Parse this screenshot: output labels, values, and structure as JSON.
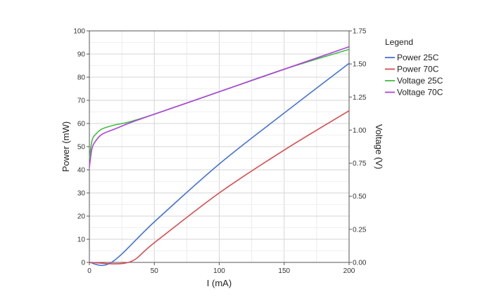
{
  "chart_data": {
    "type": "line",
    "xlabel": "I (mA)",
    "ylabel": "Power (mW)",
    "y2label": "Voltage (V)",
    "xlim": [
      0,
      200
    ],
    "ylim": [
      0,
      100
    ],
    "y2lim": [
      0,
      1.75
    ],
    "xticks": [
      "0",
      "50",
      "100",
      "150",
      "200"
    ],
    "yticks": [
      "0",
      "10",
      "20",
      "30",
      "40",
      "50",
      "60",
      "70",
      "80",
      "90",
      "100"
    ],
    "y2ticks": [
      "0.00",
      "0.25",
      "0.50",
      "0.75",
      "1.00",
      "1.25",
      "1.50",
      "1.75"
    ],
    "grid": true,
    "legend_title": "Legend",
    "legend_position": "right",
    "series": [
      {
        "name": "Power 25C",
        "axis": "left",
        "color": "#4472d9",
        "x": [
          0,
          17,
          50,
          100,
          150,
          200
        ],
        "y": [
          0,
          0,
          17.5,
          42.5,
          64.5,
          86
        ]
      },
      {
        "name": "Power 70C",
        "axis": "left",
        "color": "#d94b50",
        "x": [
          0,
          30,
          50,
          100,
          150,
          200
        ],
        "y": [
          0,
          0,
          8.5,
          30,
          48.5,
          65.5
        ]
      },
      {
        "name": "Voltage 25C",
        "axis": "right",
        "color": "#3fbf3f",
        "x": [
          0,
          2,
          5,
          10,
          20,
          30,
          50,
          100,
          150,
          200
        ],
        "y": [
          0.78,
          0.92,
          0.97,
          1.01,
          1.04,
          1.06,
          1.12,
          1.29,
          1.46,
          1.61
        ]
      },
      {
        "name": "Voltage 70C",
        "axis": "right",
        "color": "#b040e0",
        "x": [
          0,
          2,
          5,
          10,
          20,
          30,
          50,
          100,
          150,
          200
        ],
        "y": [
          0.72,
          0.86,
          0.92,
          0.97,
          1.01,
          1.05,
          1.12,
          1.29,
          1.46,
          1.63
        ]
      }
    ]
  }
}
